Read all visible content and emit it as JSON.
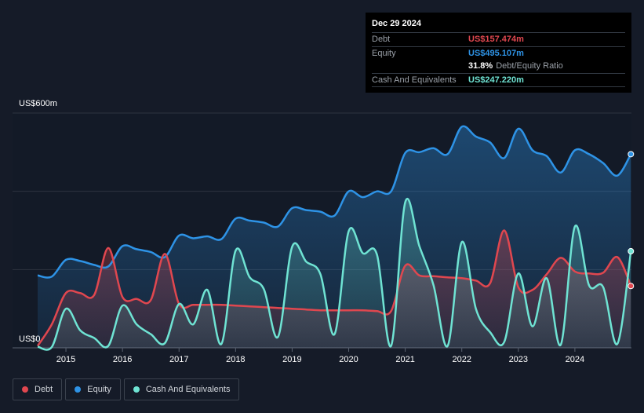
{
  "colors": {
    "background": "#151b28",
    "debt": "#e0474f",
    "equity": "#2e93e6",
    "cash": "#6fe3d3",
    "grid": "#2e3440"
  },
  "tooltip": {
    "date": "Dec 29 2024",
    "rows": [
      {
        "label": "Debt",
        "value": "US$157.474m",
        "color": "#e0474f"
      },
      {
        "label": "Equity",
        "value": "US$495.107m",
        "color": "#2e93e6"
      },
      {
        "label": "",
        "value": "31.8%",
        "suffix": "Debt/Equity Ratio",
        "color": "#ffffff"
      },
      {
        "label": "Cash And Equivalents",
        "value": "US$247.220m",
        "color": "#6fe3d3"
      }
    ]
  },
  "legend": [
    {
      "label": "Debt",
      "color": "#e0474f"
    },
    {
      "label": "Equity",
      "color": "#2e93e6"
    },
    {
      "label": "Cash And Equivalents",
      "color": "#6fe3d3"
    }
  ],
  "chart_data": {
    "type": "area",
    "y_top_label": "US$600m",
    "y_bottom_label": "US$0",
    "ylim": [
      0,
      600
    ],
    "xlim": [
      2014.5,
      2025.0
    ],
    "x_ticks": [
      "2015",
      "2016",
      "2017",
      "2018",
      "2019",
      "2020",
      "2021",
      "2022",
      "2023",
      "2024"
    ],
    "grid": true,
    "legend_position": "bottom-left",
    "series": [
      {
        "name": "Equity",
        "color": "#2e93e6",
        "points": [
          [
            2014.5,
            185
          ],
          [
            2014.75,
            182
          ],
          [
            2015.0,
            225
          ],
          [
            2015.25,
            222
          ],
          [
            2015.5,
            212
          ],
          [
            2015.75,
            208
          ],
          [
            2016.0,
            260
          ],
          [
            2016.25,
            252
          ],
          [
            2016.5,
            245
          ],
          [
            2016.75,
            232
          ],
          [
            2017.0,
            287
          ],
          [
            2017.25,
            280
          ],
          [
            2017.5,
            285
          ],
          [
            2017.75,
            278
          ],
          [
            2018.0,
            330
          ],
          [
            2018.25,
            325
          ],
          [
            2018.5,
            320
          ],
          [
            2018.75,
            310
          ],
          [
            2019.0,
            357
          ],
          [
            2019.25,
            352
          ],
          [
            2019.5,
            348
          ],
          [
            2019.75,
            338
          ],
          [
            2020.0,
            400
          ],
          [
            2020.25,
            385
          ],
          [
            2020.5,
            400
          ],
          [
            2020.75,
            400
          ],
          [
            2021.0,
            498
          ],
          [
            2021.25,
            500
          ],
          [
            2021.5,
            510
          ],
          [
            2021.75,
            495
          ],
          [
            2022.0,
            565
          ],
          [
            2022.25,
            540
          ],
          [
            2022.5,
            525
          ],
          [
            2022.75,
            485
          ],
          [
            2023.0,
            560
          ],
          [
            2023.25,
            505
          ],
          [
            2023.5,
            490
          ],
          [
            2023.75,
            448
          ],
          [
            2024.0,
            505
          ],
          [
            2024.25,
            495
          ],
          [
            2024.5,
            472
          ],
          [
            2024.75,
            440
          ],
          [
            2024.99,
            495
          ]
        ]
      },
      {
        "name": "Debt",
        "color": "#e0474f",
        "points": [
          [
            2014.5,
            5
          ],
          [
            2014.75,
            60
          ],
          [
            2015.0,
            140
          ],
          [
            2015.25,
            140
          ],
          [
            2015.5,
            135
          ],
          [
            2015.75,
            255
          ],
          [
            2016.0,
            130
          ],
          [
            2016.25,
            125
          ],
          [
            2016.5,
            122
          ],
          [
            2016.75,
            240
          ],
          [
            2017.0,
            112
          ],
          [
            2017.25,
            110
          ],
          [
            2017.5,
            110
          ],
          [
            2017.75,
            110
          ],
          [
            2018.0,
            108
          ],
          [
            2018.25,
            106
          ],
          [
            2018.5,
            104
          ],
          [
            2018.75,
            102
          ],
          [
            2019.0,
            100
          ],
          [
            2019.25,
            98
          ],
          [
            2019.5,
            96
          ],
          [
            2019.75,
            96
          ],
          [
            2020.0,
            96
          ],
          [
            2020.25,
            96
          ],
          [
            2020.5,
            94
          ],
          [
            2020.75,
            94
          ],
          [
            2021.0,
            210
          ],
          [
            2021.25,
            185
          ],
          [
            2021.5,
            183
          ],
          [
            2021.75,
            180
          ],
          [
            2022.0,
            178
          ],
          [
            2022.25,
            172
          ],
          [
            2022.5,
            165
          ],
          [
            2022.75,
            300
          ],
          [
            2023.0,
            155
          ],
          [
            2023.25,
            148
          ],
          [
            2023.5,
            188
          ],
          [
            2023.75,
            230
          ],
          [
            2024.0,
            195
          ],
          [
            2024.25,
            190
          ],
          [
            2024.5,
            192
          ],
          [
            2024.75,
            232
          ],
          [
            2024.99,
            158
          ]
        ]
      },
      {
        "name": "Cash And Equivalents",
        "color": "#6fe3d3",
        "points": [
          [
            2014.5,
            3
          ],
          [
            2014.75,
            2
          ],
          [
            2015.0,
            100
          ],
          [
            2015.25,
            45
          ],
          [
            2015.5,
            25
          ],
          [
            2015.75,
            5
          ],
          [
            2016.0,
            108
          ],
          [
            2016.25,
            60
          ],
          [
            2016.5,
            35
          ],
          [
            2016.75,
            12
          ],
          [
            2017.0,
            112
          ],
          [
            2017.25,
            60
          ],
          [
            2017.5,
            148
          ],
          [
            2017.75,
            10
          ],
          [
            2018.0,
            248
          ],
          [
            2018.25,
            180
          ],
          [
            2018.5,
            150
          ],
          [
            2018.75,
            28
          ],
          [
            2019.0,
            258
          ],
          [
            2019.25,
            220
          ],
          [
            2019.5,
            188
          ],
          [
            2019.75,
            35
          ],
          [
            2020.0,
            298
          ],
          [
            2020.25,
            242
          ],
          [
            2020.5,
            238
          ],
          [
            2020.75,
            5
          ],
          [
            2021.0,
            372
          ],
          [
            2021.25,
            260
          ],
          [
            2021.5,
            160
          ],
          [
            2021.75,
            5
          ],
          [
            2022.0,
            270
          ],
          [
            2022.25,
            100
          ],
          [
            2022.5,
            40
          ],
          [
            2022.75,
            15
          ],
          [
            2023.0,
            190
          ],
          [
            2023.25,
            55
          ],
          [
            2023.5,
            178
          ],
          [
            2023.75,
            8
          ],
          [
            2024.0,
            310
          ],
          [
            2024.25,
            160
          ],
          [
            2024.5,
            155
          ],
          [
            2024.75,
            10
          ],
          [
            2024.99,
            247
          ]
        ]
      }
    ]
  }
}
